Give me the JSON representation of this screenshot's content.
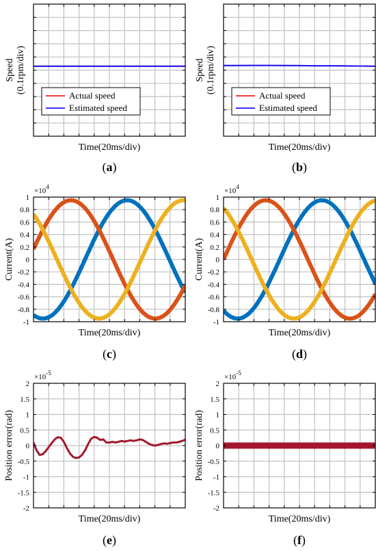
{
  "chart_data": [
    {
      "id": "a",
      "type": "line",
      "caption_letter": "a",
      "xlabel": "Time(20ms/div)",
      "ylabel": "Speed",
      "ylabel2": "(0.1rpm/div)",
      "x": [
        0,
        1,
        2,
        3,
        4,
        5,
        6,
        7,
        8,
        9,
        10
      ],
      "ylim": [
        -5,
        5
      ],
      "grid": true,
      "legend_position": "bottom-left",
      "series": [
        {
          "name": "Actual speed",
          "color": "#e8231c",
          "values": [
            0.3,
            0.3,
            0.3,
            0.3,
            0.3,
            0.3,
            0.3,
            0.3,
            0.3,
            0.3,
            0.3
          ]
        },
        {
          "name": "Estimated speed",
          "color": "#1a1aff",
          "values": [
            0.3,
            0.3,
            0.3,
            0.3,
            0.3,
            0.3,
            0.3,
            0.3,
            0.3,
            0.3,
            0.3
          ]
        }
      ]
    },
    {
      "id": "b",
      "type": "line",
      "caption_letter": "b",
      "xlabel": "Time(20ms/div)",
      "ylabel": "Speed",
      "ylabel2": "(0.1rpm/div)",
      "x": [
        0,
        1,
        2,
        3,
        4,
        5,
        6,
        7,
        8,
        9,
        10
      ],
      "ylim": [
        -5,
        5
      ],
      "grid": true,
      "legend_position": "bottom-left",
      "series": [
        {
          "name": "Actual speed",
          "color": "#e8231c",
          "values": [
            0.35,
            0.35,
            0.36,
            0.36,
            0.35,
            0.34,
            0.33,
            0.33,
            0.32,
            0.31,
            0.3
          ]
        },
        {
          "name": "Estimated speed",
          "color": "#1a1aff",
          "values": [
            0.35,
            0.35,
            0.36,
            0.36,
            0.35,
            0.34,
            0.33,
            0.33,
            0.32,
            0.31,
            0.3
          ]
        }
      ]
    },
    {
      "id": "c",
      "type": "line",
      "caption_letter": "c",
      "xlabel": "Time(20ms/div)",
      "ylabel": "Current(A)",
      "exponent": "×10",
      "exponent_power": "4",
      "ylim": [
        -1,
        1
      ],
      "yticks": [
        "1",
        "0.8",
        "0.6",
        "0.4",
        "0.2",
        "0",
        "-0.2",
        "-0.4",
        "-0.6",
        "-0.8",
        "-1"
      ],
      "grid": true,
      "xdivs": 10,
      "line_width": 6,
      "series": [
        {
          "color": "#0072bd",
          "amplitude": 0.95,
          "start_phase_deg": 250,
          "periods": 0.9
        },
        {
          "color": "#d95319",
          "amplitude": 0.95,
          "start_phase_deg": 10,
          "periods": 0.9
        },
        {
          "color": "#edb120",
          "amplitude": 0.95,
          "start_phase_deg": 130,
          "periods": 0.9
        }
      ]
    },
    {
      "id": "d",
      "type": "line",
      "caption_letter": "d",
      "xlabel": "Time(20ms/div)",
      "ylabel": "Current(A)",
      "exponent": "×10",
      "exponent_power": "4",
      "ylim": [
        -1,
        1
      ],
      "yticks": [
        "1",
        "0.8",
        "0.6",
        "0.4",
        "0.2",
        "0",
        "-0.2",
        "-0.4",
        "-0.6",
        "-0.8",
        "-1"
      ],
      "grid": true,
      "xdivs": 10,
      "line_width": 6,
      "series": [
        {
          "color": "#0072bd",
          "amplitude": 0.95,
          "start_phase_deg": 240,
          "periods": 0.9
        },
        {
          "color": "#d95319",
          "amplitude": 0.95,
          "start_phase_deg": 0,
          "periods": 0.9
        },
        {
          "color": "#edb120",
          "amplitude": 0.95,
          "start_phase_deg": 120,
          "periods": 0.9
        }
      ]
    },
    {
      "id": "e",
      "type": "line",
      "caption_letter": "e",
      "xlabel": "Time(20ms/div)",
      "ylabel": "Position error(rad)",
      "exponent": "×10",
      "exponent_power": "-5",
      "ylim": [
        -2,
        2
      ],
      "yticks": [
        "2",
        "1.5",
        "1",
        "0.5",
        "0",
        "-0.5",
        "-1",
        "-1.5",
        "-2"
      ],
      "grid": true,
      "xdivs": 10,
      "line_width": 3,
      "x": [
        0,
        0.2,
        0.4,
        0.6,
        0.8,
        1.0,
        1.2,
        1.4,
        1.6,
        1.8,
        2.0,
        2.2,
        2.4,
        2.6,
        2.8,
        3.0,
        3.2,
        3.4,
        3.6,
        3.8,
        4.0,
        4.2,
        4.4,
        4.6,
        4.8,
        5.0,
        5.2,
        5.4,
        5.6,
        5.8,
        6.0,
        6.2,
        6.4,
        6.6,
        6.8,
        7.0,
        7.2,
        7.4,
        7.6,
        7.8,
        8.0,
        8.2,
        8.4,
        8.6,
        8.8,
        9.0,
        9.2,
        9.4,
        9.6,
        9.8,
        10.0
      ],
      "series": [
        {
          "color": "#a3172d",
          "values": [
            0.1,
            -0.15,
            -0.3,
            -0.28,
            -0.18,
            -0.05,
            0.08,
            0.2,
            0.27,
            0.25,
            0.12,
            -0.08,
            -0.25,
            -0.36,
            -0.4,
            -0.38,
            -0.3,
            -0.15,
            0.05,
            0.22,
            0.28,
            0.25,
            0.18,
            0.2,
            0.1,
            0.1,
            0.12,
            0.1,
            0.12,
            0.15,
            0.13,
            0.15,
            0.17,
            0.15,
            0.17,
            0.2,
            0.18,
            0.12,
            0.06,
            0.02,
            0.0,
            0.02,
            0.05,
            0.07,
            0.06,
            0.08,
            0.1,
            0.1,
            0.12,
            0.15,
            0.19
          ]
        }
      ]
    },
    {
      "id": "f",
      "type": "line",
      "caption_letter": "f",
      "xlabel": "Time(20ms/div)",
      "ylabel": "Position error(rad)",
      "exponent": "×10",
      "exponent_power": "-5",
      "ylim": [
        -2,
        2
      ],
      "yticks": [
        "2",
        "1.5",
        "1",
        "0.5",
        "0",
        "-0.5",
        "-1",
        "-1.5",
        "-2"
      ],
      "grid": true,
      "xdivs": 10,
      "series": [
        {
          "color": "#a3172d",
          "band": [
            -0.1,
            0.1
          ]
        }
      ]
    }
  ]
}
